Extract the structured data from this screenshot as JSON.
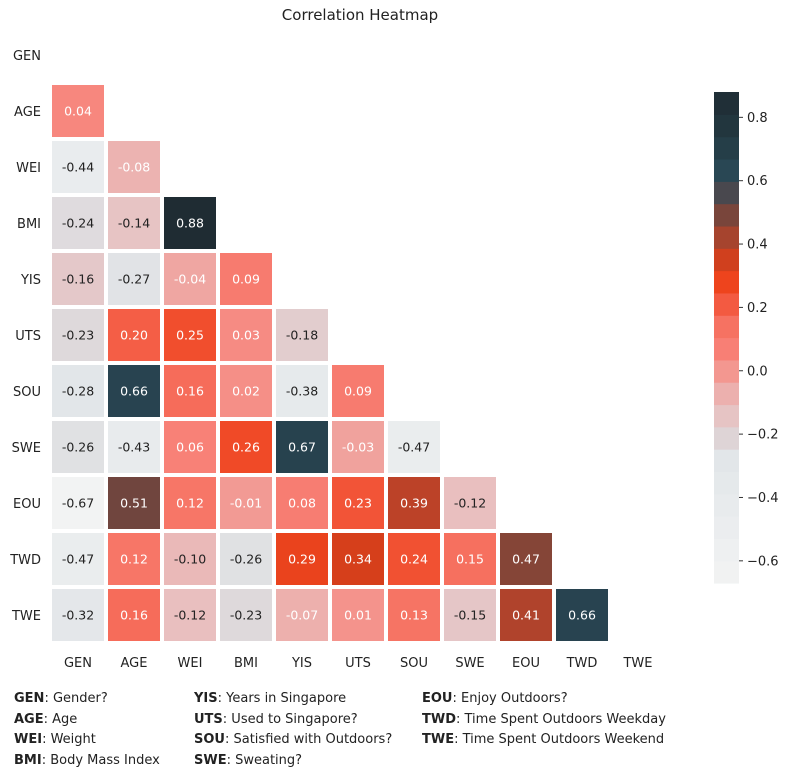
{
  "chart_data": {
    "type": "heatmap",
    "title": "Correlation Heatmap",
    "variables": [
      "GEN",
      "AGE",
      "WEI",
      "BMI",
      "YIS",
      "UTS",
      "SOU",
      "SWE",
      "EOU",
      "TWD",
      "TWE"
    ],
    "mask": "upper-triangle-and-diagonal",
    "values": [
      [],
      [
        0.04
      ],
      [
        -0.44,
        -0.08
      ],
      [
        -0.24,
        -0.14,
        0.88
      ],
      [
        -0.16,
        -0.27,
        -0.04,
        0.09
      ],
      [
        -0.23,
        0.2,
        0.25,
        0.03,
        -0.18
      ],
      [
        -0.28,
        0.66,
        0.16,
        0.02,
        -0.38,
        0.09
      ],
      [
        -0.26,
        -0.43,
        0.06,
        0.26,
        0.67,
        -0.03,
        -0.47
      ],
      [
        -0.67,
        0.51,
        0.12,
        -0.01,
        0.08,
        0.23,
        0.39,
        -0.12
      ],
      [
        -0.47,
        0.12,
        -0.1,
        -0.26,
        0.29,
        0.34,
        0.24,
        0.15,
        0.47
      ],
      [
        -0.32,
        0.16,
        -0.12,
        -0.23,
        -0.07,
        0.01,
        0.13,
        -0.15,
        0.41,
        0.66
      ]
    ],
    "value_labels": [
      [],
      [
        "0.04"
      ],
      [
        "-0.44",
        "-0.08"
      ],
      [
        "-0.24",
        "-0.14",
        "0.88"
      ],
      [
        "-0.16",
        "-0.27",
        "-0.04",
        "0.09"
      ],
      [
        "-0.23",
        "0.20",
        "0.25",
        "0.03",
        "-0.18"
      ],
      [
        "-0.28",
        "0.66",
        "0.16",
        "0.02",
        "-0.38",
        "0.09"
      ],
      [
        "-0.26",
        "-0.43",
        "0.06",
        "0.26",
        "0.67",
        "-0.03",
        "-0.47"
      ],
      [
        "-0.67",
        "0.51",
        "0.12",
        "-0.01",
        "0.08",
        "0.23",
        "0.39",
        "-0.12"
      ],
      [
        "-0.47",
        "0.12",
        "-0.10",
        "-0.26",
        "0.29",
        "0.34",
        "0.24",
        "0.15",
        "0.47"
      ],
      [
        "-0.32",
        "0.16",
        "-0.12",
        "-0.23",
        "-0.07",
        "0.01",
        "0.13",
        "-0.15",
        "0.41",
        "0.66"
      ]
    ],
    "colorbar": {
      "range": [
        -0.67,
        0.88
      ],
      "ticks": [
        -0.6,
        -0.4,
        -0.2,
        0.0,
        0.2,
        0.4,
        0.6,
        0.8
      ],
      "tick_labels": [
        "−0.6",
        "−0.4",
        "−0.2",
        "0.0",
        "0.2",
        "0.4",
        "0.6",
        "0.8"
      ],
      "colors": [
        "#f2f3f3",
        "#e9ecee",
        "#e2e6e9",
        "#ddd6d8",
        "#e9bfbf",
        "#eeaaa6",
        "#f8837a",
        "#f6705f",
        "#f3573c",
        "#ee441d",
        "#d63f1b",
        "#b7432a",
        "#8a4535",
        "#6b4540",
        "#2b4b5a",
        "#233840",
        "#1f2c33"
      ],
      "stops": [
        -0.67,
        -0.45,
        -0.28,
        -0.22,
        -0.12,
        -0.05,
        0.05,
        0.15,
        0.22,
        0.28,
        0.34,
        0.4,
        0.46,
        0.52,
        0.6,
        0.75,
        0.88
      ]
    }
  },
  "legend": [
    [
      {
        "abbr": "GEN",
        "text": ": Gender?"
      },
      {
        "abbr": "AGE",
        "text": ": Age"
      },
      {
        "abbr": "WEI",
        "text": ": Weight"
      },
      {
        "abbr": "BMI",
        "text": ": Body Mass Index"
      }
    ],
    [
      {
        "abbr": "YIS",
        "text": ": Years in Singapore"
      },
      {
        "abbr": "UTS",
        "text": ": Used to Singapore?"
      },
      {
        "abbr": "SOU",
        "text": ": Satisfied with Outdoors?"
      },
      {
        "abbr": "SWE",
        "text": ": Sweating?"
      }
    ],
    [
      {
        "abbr": "EOU",
        "text": ": Enjoy Outdoors?"
      },
      {
        "abbr": "TWD",
        "text": ": Time Spent Outdoors Weekday"
      },
      {
        "abbr": "TWE",
        "text": ": Time Spent Outdoors Weekend"
      }
    ]
  ]
}
